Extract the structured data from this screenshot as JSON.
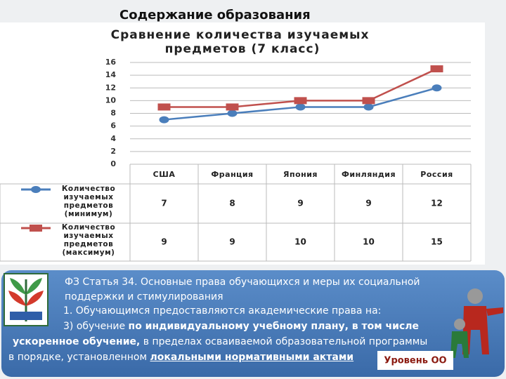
{
  "header": {
    "title": "Содержание образования"
  },
  "chart_data": {
    "type": "line",
    "title": "Сравнение количества изучаемых предметов (7 класс)",
    "categories": [
      "США",
      "Франция",
      "Япония",
      "Финляндия",
      "Россия"
    ],
    "series": [
      {
        "name": "Количество изучаемых предметов (минимум)",
        "color": "#4a7ebb",
        "marker": "circle",
        "values": [
          7,
          8,
          9,
          9,
          12
        ]
      },
      {
        "name": "Количество изучаемых предметов (максимум)",
        "color": "#c0504d",
        "marker": "square",
        "values": [
          9,
          9,
          10,
          10,
          15
        ]
      }
    ],
    "ylim": [
      0,
      16
    ],
    "yticks": [
      0,
      2,
      4,
      6,
      8,
      10,
      12,
      14,
      16
    ],
    "grid": true,
    "data_table": true
  },
  "panel": {
    "heading": "ФЗ Статья 34. Основные права обучающихся и меры их социальной поддержки  и стимулирования",
    "item1": "1. Обучающимся предоставляются академические права на:",
    "item3_start": "3) обучение ",
    "item3_bold": "по индивидуальному учебному плану, в том числе",
    "line6_bold": "ускоренное обучение,",
    "line6_rest": " в пределах осваиваемой образовательной программы",
    "line7_start": "в порядке, установленном ",
    "line7_bold": "локальными нормативными актами",
    "badge": "Уровень ОО"
  }
}
